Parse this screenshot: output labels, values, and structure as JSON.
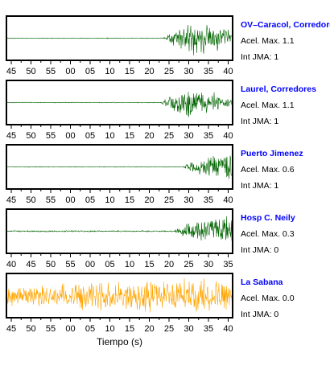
{
  "chart_data": [
    {
      "type": "line",
      "title": "OV–Caracol, Corredore",
      "info": [
        "Acel. Max. 1.1",
        "Int JMA: 1"
      ],
      "color": "#006400",
      "tick_labels": [
        "45",
        "50",
        "55",
        "00",
        "05",
        "10",
        "15",
        "20",
        "25",
        "30",
        "35",
        "40"
      ],
      "envelope": {
        "quiet_level": 0.02,
        "onset": 23.5,
        "peak_time": 31.0,
        "peak_amp": 1.0,
        "tail_amp": 0.45,
        "seed": 11
      }
    },
    {
      "type": "line",
      "title": "Laurel, Corredores",
      "info": [
        "Acel. Max. 1.1",
        "Int JMA: 1"
      ],
      "color": "#006400",
      "tick_labels": [
        "45",
        "50",
        "55",
        "00",
        "05",
        "10",
        "15",
        "20",
        "25",
        "30",
        "35",
        "40"
      ],
      "envelope": {
        "quiet_level": 0.02,
        "onset": 23.0,
        "peak_time": 30.0,
        "peak_amp": 0.85,
        "tail_amp": 0.4,
        "seed": 23
      }
    },
    {
      "type": "line",
      "title": "Puerto Jimenez",
      "info": [
        "Acel. Max. 0.6",
        "Int JMA: 1"
      ],
      "color": "#006400",
      "tick_labels": [
        "45",
        "50",
        "55",
        "00",
        "05",
        "10",
        "15",
        "20",
        "25",
        "30",
        "35",
        "40"
      ],
      "envelope": {
        "quiet_level": 0.02,
        "onset": 28.5,
        "peak_time": 41.5,
        "peak_amp": 1.0,
        "tail_amp": 0.95,
        "seed": 37
      }
    },
    {
      "type": "line",
      "title": "Hosp C. Neily",
      "info": [
        "Acel. Max. 0.3",
        "Int JMA: 0"
      ],
      "color": "#006400",
      "tick_labels": [
        "40",
        "45",
        "50",
        "55",
        "00",
        "05",
        "10",
        "15",
        "20",
        "25",
        "30",
        "35"
      ],
      "envelope": {
        "quiet_level": 0.04,
        "onset": 26.5,
        "peak_time": 36.0,
        "peak_amp": 0.95,
        "tail_amp": 0.75,
        "seed": 53
      }
    },
    {
      "type": "line",
      "title": "La Sabana",
      "info": [
        "Acel. Max. 0.0",
        "Int JMA: 0"
      ],
      "color": "#ffa500",
      "tick_labels": [
        "45",
        "50",
        "55",
        "00",
        "05",
        "10",
        "15",
        "20",
        "25",
        "30",
        "35",
        "40"
      ],
      "xlabel": "Tiempo (s)",
      "envelope": {
        "quiet_level": 0.55,
        "onset": -16.0,
        "peak_time": 31.5,
        "peak_amp": 1.0,
        "tail_amp": 0.75,
        "seed": 71
      }
    }
  ]
}
